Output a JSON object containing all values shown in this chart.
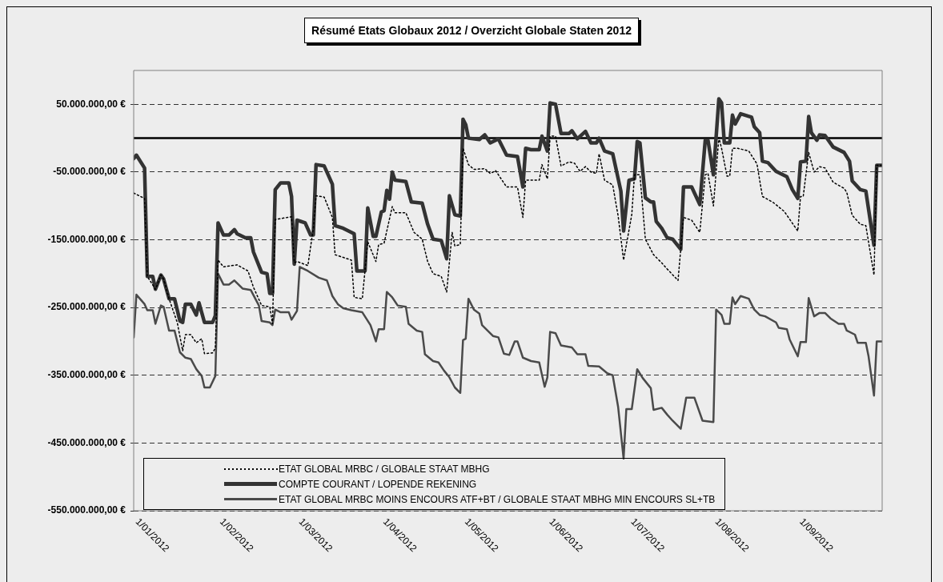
{
  "chart_data": {
    "type": "line",
    "title": "Résumé Etats Globaux 2012 / Overzicht Globale Staten 2012",
    "xlim": [
      "2012-01-01",
      "2012-10-02"
    ],
    "xticks": [
      {
        "value": "2012-01-01",
        "label": "1/01/2012"
      },
      {
        "value": "2012-02-01",
        "label": "1/02/2012"
      },
      {
        "value": "2012-03-01",
        "label": "1/03/2012"
      },
      {
        "value": "2012-04-01",
        "label": "1/04/2012"
      },
      {
        "value": "2012-05-01",
        "label": "1/05/2012"
      },
      {
        "value": "2012-06-01",
        "label": "1/06/2012"
      },
      {
        "value": "2012-07-01",
        "label": "1/07/2012"
      },
      {
        "value": "2012-08-01",
        "label": "1/08/2012"
      },
      {
        "value": "2012-09-01",
        "label": "1/09/2012"
      }
    ],
    "ylim": [
      -550000000,
      100000000
    ],
    "yticks": [
      {
        "value": 50000000,
        "label": "50.000.000,00 €"
      },
      {
        "value": -50000000,
        "label": "-50.000.000,00 €"
      },
      {
        "value": -150000000,
        "label": "-150.000.000,00 €"
      },
      {
        "value": -250000000,
        "label": "-250.000.000,00 €"
      },
      {
        "value": -350000000,
        "label": "-350.000.000,00 €"
      },
      {
        "value": -450000000,
        "label": "-450.000.000,00 €"
      },
      {
        "value": -550000000,
        "label": "-550.000.000,00 €"
      }
    ],
    "grid": "y",
    "legend": "bottom left",
    "marker": "none",
    "ref_lines": [
      {
        "axis": "y",
        "value": 0,
        "color": "#000000"
      }
    ],
    "series": [
      {
        "name": "ETAT GLOBAL MRBC / GLOBALE STAAT MBHG",
        "color": "#000000",
        "line_style": "dotted",
        "x": [
          "2012-01-01",
          "2012-01-05",
          "2012-01-06",
          "2012-01-09",
          "2012-01-11",
          "2012-01-12",
          "2012-01-14",
          "2012-01-17",
          "2012-01-19",
          "2012-01-20",
          "2012-01-22",
          "2012-01-24",
          "2012-01-26",
          "2012-01-27",
          "2012-01-30",
          "2012-01-31",
          "2012-02-01",
          "2012-02-03",
          "2012-02-08",
          "2012-02-12",
          "2012-02-14",
          "2012-02-17",
          "2012-02-20",
          "2012-02-21",
          "2012-02-22",
          "2012-02-28",
          "2012-02-29",
          "2012-03-01",
          "2012-03-05",
          "2012-03-07",
          "2012-03-08",
          "2012-03-11",
          "2012-03-14",
          "2012-03-15",
          "2012-03-18",
          "2012-03-21",
          "2012-03-22",
          "2012-03-25",
          "2012-03-27",
          "2012-03-30",
          "2012-03-31",
          "2012-04-02",
          "2012-04-05",
          "2012-04-06",
          "2012-04-10",
          "2012-04-13",
          "2012-04-16",
          "2012-04-18",
          "2012-04-20",
          "2012-04-23",
          "2012-04-25",
          "2012-04-27",
          "2012-04-28",
          "2012-04-30",
          "2012-05-01",
          "2012-05-03",
          "2012-05-05",
          "2012-05-09",
          "2012-05-11",
          "2012-05-13",
          "2012-05-17",
          "2012-05-21",
          "2012-05-23",
          "2012-05-24",
          "2012-05-29",
          "2012-05-30",
          "2012-06-01",
          "2012-06-02",
          "2012-06-04",
          "2012-06-06",
          "2012-06-09",
          "2012-06-11",
          "2012-06-13",
          "2012-06-15",
          "2012-06-17",
          "2012-06-19",
          "2012-06-20",
          "2012-06-22",
          "2012-06-25",
          "2012-06-27",
          "2012-06-29",
          "2012-07-02",
          "2012-07-03",
          "2012-07-05",
          "2012-07-07",
          "2012-07-10",
          "2012-07-13",
          "2012-07-15",
          "2012-07-19",
          "2012-07-21",
          "2012-07-24",
          "2012-07-27",
          "2012-07-29",
          "2012-07-30",
          "2012-08-01",
          "2012-08-03",
          "2012-08-04",
          "2012-08-06",
          "2012-08-07",
          "2012-08-08",
          "2012-08-10",
          "2012-08-14",
          "2012-08-17",
          "2012-08-19",
          "2012-08-23",
          "2012-08-27",
          "2012-09-01",
          "2012-09-02",
          "2012-09-03",
          "2012-09-05",
          "2012-09-07",
          "2012-09-09",
          "2012-09-11",
          "2012-09-14",
          "2012-09-18",
          "2012-09-19",
          "2012-09-21",
          "2012-09-24",
          "2012-09-26",
          "2012-09-29",
          "2012-09-30",
          "2012-10-02"
        ],
        "values": [
          -81000000,
          -89000000,
          -204000000,
          -223000000,
          -202000000,
          -208000000,
          -237000000,
          -272000000,
          -314000000,
          -290000000,
          -290000000,
          -302000000,
          -296000000,
          -318000000,
          -317000000,
          -310000000,
          -180000000,
          -190000000,
          -187000000,
          -196000000,
          -220000000,
          -247000000,
          -249000000,
          -274000000,
          -120000000,
          -116000000,
          -184000000,
          -182000000,
          -188000000,
          -133000000,
          -85000000,
          -87000000,
          -117000000,
          -172000000,
          -176000000,
          -180000000,
          -235000000,
          -237000000,
          -153000000,
          -182000000,
          -157000000,
          -155000000,
          -101000000,
          -110000000,
          -110000000,
          -139000000,
          -149000000,
          -182000000,
          -200000000,
          -204000000,
          -227000000,
          -139000000,
          -159000000,
          -157000000,
          -15000000,
          -39000000,
          -46000000,
          -45000000,
          -52000000,
          -48000000,
          -72000000,
          -72000000,
          -117000000,
          -62000000,
          -62000000,
          -39000000,
          -60000000,
          3000000,
          3000000,
          -41000000,
          -35000000,
          -37000000,
          -49000000,
          -42000000,
          -50000000,
          -52000000,
          -23000000,
          -62000000,
          -69000000,
          -115000000,
          -180000000,
          -113000000,
          -54000000,
          -54000000,
          -149000000,
          -172000000,
          -184000000,
          -193000000,
          -210000000,
          -117000000,
          -121000000,
          -139000000,
          -54000000,
          -52000000,
          -100000000,
          1000000,
          -15000000,
          -56000000,
          -56000000,
          -15000000,
          -15000000,
          -19000000,
          -38000000,
          -86000000,
          -95000000,
          -108000000,
          -137000000,
          -86000000,
          -86000000,
          -21000000,
          -50000000,
          -42000000,
          -44000000,
          -65000000,
          -74000000,
          -80000000,
          -114000000,
          -127000000,
          -129000000,
          -202000000,
          -40000000,
          -40000000
        ]
      },
      {
        "name": "COMPTE COURANT / LOPENDE REKENING",
        "color": "#333333",
        "line_style": "solid",
        "x": [
          "2012-01-01",
          "2012-01-02",
          "2012-01-05",
          "2012-01-06",
          "2012-01-08",
          "2012-01-09",
          "2012-01-11",
          "2012-01-12",
          "2012-01-14",
          "2012-01-16",
          "2012-01-18",
          "2012-01-19",
          "2012-01-20",
          "2012-01-22",
          "2012-01-24",
          "2012-01-25",
          "2012-01-27",
          "2012-01-30",
          "2012-01-31",
          "2012-02-01",
          "2012-02-03",
          "2012-02-05",
          "2012-02-07",
          "2012-02-08",
          "2012-02-11",
          "2012-02-13",
          "2012-02-14",
          "2012-02-17",
          "2012-02-19",
          "2012-02-20",
          "2012-02-21",
          "2012-02-22",
          "2012-02-24",
          "2012-02-27",
          "2012-02-28",
          "2012-02-29",
          "2012-03-01",
          "2012-03-04",
          "2012-03-06",
          "2012-03-07",
          "2012-03-08",
          "2012-03-11",
          "2012-03-14",
          "2012-03-15",
          "2012-03-18",
          "2012-03-22",
          "2012-03-23",
          "2012-03-26",
          "2012-03-27",
          "2012-03-29",
          "2012-03-30",
          "2012-04-01",
          "2012-04-02",
          "2012-04-03",
          "2012-04-04",
          "2012-04-05",
          "2012-04-06",
          "2012-04-10",
          "2012-04-12",
          "2012-04-16",
          "2012-04-18",
          "2012-04-20",
          "2012-04-23",
          "2012-04-25",
          "2012-04-26",
          "2012-04-28",
          "2012-04-30",
          "2012-05-01",
          "2012-05-02",
          "2012-05-03",
          "2012-05-07",
          "2012-05-09",
          "2012-05-11",
          "2012-05-14",
          "2012-05-17",
          "2012-05-21",
          "2012-05-23",
          "2012-05-24",
          "2012-05-26",
          "2012-05-29",
          "2012-05-30",
          "2012-06-01",
          "2012-06-02",
          "2012-06-04",
          "2012-06-06",
          "2012-06-09",
          "2012-06-10",
          "2012-06-12",
          "2012-06-15",
          "2012-06-17",
          "2012-06-19",
          "2012-06-20",
          "2012-06-22",
          "2012-06-25",
          "2012-06-28",
          "2012-06-29",
          "2012-07-01",
          "2012-07-03",
          "2012-07-04",
          "2012-07-05",
          "2012-07-07",
          "2012-07-09",
          "2012-07-10",
          "2012-07-11",
          "2012-07-13",
          "2012-07-15",
          "2012-07-17",
          "2012-07-20",
          "2012-07-21",
          "2012-07-24",
          "2012-07-27",
          "2012-07-29",
          "2012-07-30",
          "2012-08-01",
          "2012-08-03",
          "2012-08-04",
          "2012-08-05",
          "2012-08-07",
          "2012-08-08",
          "2012-08-09",
          "2012-08-11",
          "2012-08-15",
          "2012-08-16",
          "2012-08-18",
          "2012-08-19",
          "2012-08-21",
          "2012-08-24",
          "2012-08-28",
          "2012-08-30",
          "2012-09-01",
          "2012-09-02",
          "2012-09-04",
          "2012-09-05",
          "2012-09-06",
          "2012-09-08",
          "2012-09-09",
          "2012-09-11",
          "2012-09-14",
          "2012-09-18",
          "2012-09-20",
          "2012-09-21",
          "2012-09-24",
          "2012-09-26",
          "2012-09-29",
          "2012-09-30",
          "2012-10-02"
        ],
        "values": [
          -30000000,
          -25000000,
          -44000000,
          -204000000,
          -204000000,
          -223000000,
          -202000000,
          -208000000,
          -237000000,
          -237000000,
          -270000000,
          -272000000,
          -245000000,
          -245000000,
          -261000000,
          -243000000,
          -272000000,
          -272000000,
          -262000000,
          -125000000,
          -143000000,
          -143000000,
          -135000000,
          -141000000,
          -147000000,
          -147000000,
          -168000000,
          -198000000,
          -200000000,
          -229000000,
          -229000000,
          -76000000,
          -66000000,
          -66000000,
          -86000000,
          -186000000,
          -121000000,
          -125000000,
          -143000000,
          -143000000,
          -39000000,
          -41000000,
          -68000000,
          -129000000,
          -133000000,
          -141000000,
          -196000000,
          -196000000,
          -103000000,
          -145000000,
          -145000000,
          -109000000,
          -107000000,
          -77000000,
          -90000000,
          -50000000,
          -62000000,
          -64000000,
          -94000000,
          -96000000,
          -127000000,
          -149000000,
          -151000000,
          -178000000,
          -85000000,
          -113000000,
          -115000000,
          28000000,
          20000000,
          0,
          -2000000,
          5000000,
          -7000000,
          -1000000,
          -25000000,
          -27000000,
          -72000000,
          -15000000,
          -17000000,
          -17000000,
          3000000,
          -19000000,
          52000000,
          50000000,
          7000000,
          7000000,
          11000000,
          -1000000,
          10000000,
          -7000000,
          -7000000,
          0,
          -19000000,
          -23000000,
          -78000000,
          -137000000,
          -62000000,
          -60000000,
          -5000000,
          -7000000,
          -88000000,
          -94000000,
          -94000000,
          -123000000,
          -133000000,
          -147000000,
          -149000000,
          -164000000,
          -72000000,
          -72000000,
          -98000000,
          -3000000,
          -3000000,
          -54000000,
          58000000,
          52000000,
          -7000000,
          -7000000,
          34000000,
          21000000,
          36000000,
          31000000,
          17000000,
          8000000,
          -34000000,
          -36000000,
          -49000000,
          -57000000,
          -76000000,
          -89000000,
          -35000000,
          -34000000,
          32000000,
          8000000,
          -3000000,
          5000000,
          4000000,
          -13000000,
          -21000000,
          -34000000,
          -63000000,
          -76000000,
          -78000000,
          -158000000,
          -40000000,
          -40000000
        ]
      },
      {
        "name": "ETAT GLOBAL MRBC MOINS ENCOURS ATF+BT / GLOBALE STAAT MBHG MIN ENCOURS SL+TB",
        "color": "#4a4a4a",
        "line_style": "solid",
        "x": [
          "2012-01-01",
          "2012-01-02",
          "2012-01-05",
          "2012-01-06",
          "2012-01-08",
          "2012-01-09",
          "2012-01-11",
          "2012-01-12",
          "2012-01-14",
          "2012-01-16",
          "2012-01-18",
          "2012-01-20",
          "2012-01-22",
          "2012-01-24",
          "2012-01-26",
          "2012-01-27",
          "2012-01-29",
          "2012-01-31",
          "2012-02-01",
          "2012-02-03",
          "2012-02-05",
          "2012-02-07",
          "2012-02-10",
          "2012-02-13",
          "2012-02-16",
          "2012-02-17",
          "2012-02-20",
          "2012-02-21",
          "2012-02-22",
          "2012-02-24",
          "2012-02-27",
          "2012-02-28",
          "2012-03-01",
          "2012-03-02",
          "2012-03-05",
          "2012-03-09",
          "2012-03-12",
          "2012-03-14",
          "2012-03-16",
          "2012-03-18",
          "2012-03-21",
          "2012-03-25",
          "2012-03-28",
          "2012-03-30",
          "2012-03-31",
          "2012-04-02",
          "2012-04-03",
          "2012-04-05",
          "2012-04-07",
          "2012-04-10",
          "2012-04-11",
          "2012-04-14",
          "2012-04-16",
          "2012-04-17",
          "2012-04-20",
          "2012-04-22",
          "2012-04-24",
          "2012-04-26",
          "2012-04-28",
          "2012-04-30",
          "2012-05-01",
          "2012-05-02",
          "2012-05-03",
          "2012-05-05",
          "2012-05-07",
          "2012-05-08",
          "2012-05-10",
          "2012-05-12",
          "2012-05-14",
          "2012-05-16",
          "2012-05-18",
          "2012-05-20",
          "2012-05-21",
          "2012-05-23",
          "2012-05-26",
          "2012-05-29",
          "2012-05-31",
          "2012-06-01",
          "2012-06-02",
          "2012-06-04",
          "2012-06-06",
          "2012-06-10",
          "2012-06-12",
          "2012-06-15",
          "2012-06-16",
          "2012-06-20",
          "2012-06-23",
          "2012-06-25",
          "2012-06-27",
          "2012-06-29",
          "2012-06-30",
          "2012-07-02",
          "2012-07-04",
          "2012-07-06",
          "2012-07-09",
          "2012-07-10",
          "2012-07-13",
          "2012-07-15",
          "2012-07-17",
          "2012-07-20",
          "2012-07-22",
          "2012-07-25",
          "2012-07-28",
          "2012-08-01",
          "2012-08-02",
          "2012-08-04",
          "2012-08-05",
          "2012-08-07",
          "2012-08-08",
          "2012-08-09",
          "2012-08-11",
          "2012-08-14",
          "2012-08-16",
          "2012-08-18",
          "2012-08-20",
          "2012-08-24",
          "2012-08-25",
          "2012-08-28",
          "2012-08-29",
          "2012-09-01",
          "2012-09-02",
          "2012-09-04",
          "2012-09-05",
          "2012-09-07",
          "2012-09-09",
          "2012-09-11",
          "2012-09-13",
          "2012-09-16",
          "2012-09-18",
          "2012-09-19",
          "2012-09-22",
          "2012-09-23",
          "2012-09-26",
          "2012-09-27",
          "2012-09-29",
          "2012-09-30",
          "2012-10-02"
        ],
        "values": [
          -294000000,
          -231000000,
          -245000000,
          -254000000,
          -254000000,
          -274000000,
          -247000000,
          -249000000,
          -284000000,
          -284000000,
          -316000000,
          -324000000,
          -326000000,
          -341000000,
          -351000000,
          -368000000,
          -368000000,
          -351000000,
          -200000000,
          -216000000,
          -216000000,
          -210000000,
          -222000000,
          -224000000,
          -247000000,
          -270000000,
          -272000000,
          -276000000,
          -253000000,
          -257000000,
          -257000000,
          -268000000,
          -255000000,
          -190000000,
          -196000000,
          -206000000,
          -210000000,
          -233000000,
          -245000000,
          -251000000,
          -254000000,
          -257000000,
          -276000000,
          -300000000,
          -282000000,
          -282000000,
          -227000000,
          -235000000,
          -247000000,
          -249000000,
          -274000000,
          -284000000,
          -286000000,
          -319000000,
          -329000000,
          -331000000,
          -343000000,
          -353000000,
          -368000000,
          -376000000,
          -298000000,
          -296000000,
          -237000000,
          -253000000,
          -259000000,
          -276000000,
          -284000000,
          -292000000,
          -294000000,
          -318000000,
          -320000000,
          -300000000,
          -300000000,
          -324000000,
          -329000000,
          -331000000,
          -367000000,
          -353000000,
          -286000000,
          -288000000,
          -306000000,
          -309000000,
          -319000000,
          -319000000,
          -336000000,
          -337000000,
          -347000000,
          -350000000,
          -397000000,
          -473000000,
          -400000000,
          -400000000,
          -341000000,
          -354000000,
          -369000000,
          -401000000,
          -398000000,
          -408000000,
          -417000000,
          -429000000,
          -383000000,
          -383000000,
          -417000000,
          -419000000,
          -253000000,
          -261000000,
          -274000000,
          -274000000,
          -235000000,
          -245000000,
          -233000000,
          -237000000,
          -253000000,
          -261000000,
          -263000000,
          -272000000,
          -280000000,
          -282000000,
          -297000000,
          -322000000,
          -301000000,
          -301000000,
          -236000000,
          -263000000,
          -258000000,
          -258000000,
          -266000000,
          -274000000,
          -274000000,
          -284000000,
          -290000000,
          -302000000,
          -302000000,
          -322000000,
          -380000000,
          -300000000,
          -300000000
        ]
      }
    ]
  }
}
